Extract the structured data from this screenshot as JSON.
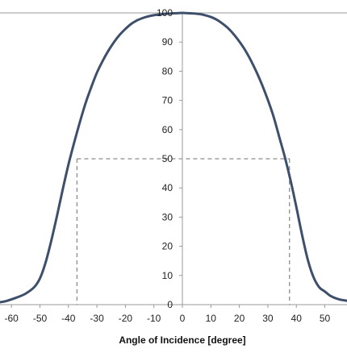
{
  "chart_data": {
    "type": "line",
    "xlabel": "Angle of Incidence [degree]",
    "ylabel": "",
    "title": "",
    "xlim": [
      -65,
      58
    ],
    "ylim": [
      0,
      100
    ],
    "xticks": [
      -60,
      -50,
      -40,
      -30,
      -20,
      -10,
      0,
      10,
      20,
      30,
      40,
      50
    ],
    "yticks": [
      0,
      10,
      20,
      30,
      40,
      50,
      60,
      70,
      80,
      90,
      100
    ],
    "grid": false,
    "colors": {
      "curve": "#3d4f6b",
      "axis": "#9a9a9a",
      "reference": "#8c8c8c"
    },
    "series": [
      {
        "x": [
          -65,
          -62,
          -58,
          -55,
          -52,
          -50,
          -48,
          -46,
          -44,
          -42,
          -40,
          -38,
          -36,
          -34,
          -32,
          -30,
          -28,
          -26,
          -24,
          -22,
          -20,
          -18,
          -16,
          -14,
          -12,
          -10,
          -8,
          -6,
          -4,
          -2,
          0,
          2,
          4,
          6,
          8,
          10,
          12,
          14,
          16,
          18,
          20,
          22,
          24,
          26,
          28,
          30,
          32,
          34,
          36,
          38,
          40,
          42,
          44,
          46,
          48,
          50,
          52,
          55,
          58
        ],
        "y": [
          0.7,
          1.2,
          2.5,
          3.8,
          6.0,
          9.0,
          14.5,
          22.0,
          30.5,
          39.5,
          48.0,
          55.5,
          62.5,
          69.0,
          74.5,
          79.5,
          83.5,
          87.0,
          90.0,
          92.5,
          94.5,
          96.2,
          97.4,
          98.2,
          98.8,
          99.2,
          99.5,
          99.7,
          99.8,
          99.9,
          100.0,
          99.9,
          99.8,
          99.6,
          99.2,
          98.6,
          97.7,
          96.4,
          94.8,
          92.7,
          90.2,
          87.3,
          83.8,
          79.8,
          75.3,
          70.2,
          64.5,
          57.5,
          50.5,
          42.5,
          33.5,
          24.0,
          15.5,
          9.5,
          6.0,
          4.5,
          3.0,
          1.8,
          1.3
        ]
      }
    ],
    "reference_lines": {
      "y": 50,
      "x_left": -37,
      "x_right": 37.6
    }
  }
}
